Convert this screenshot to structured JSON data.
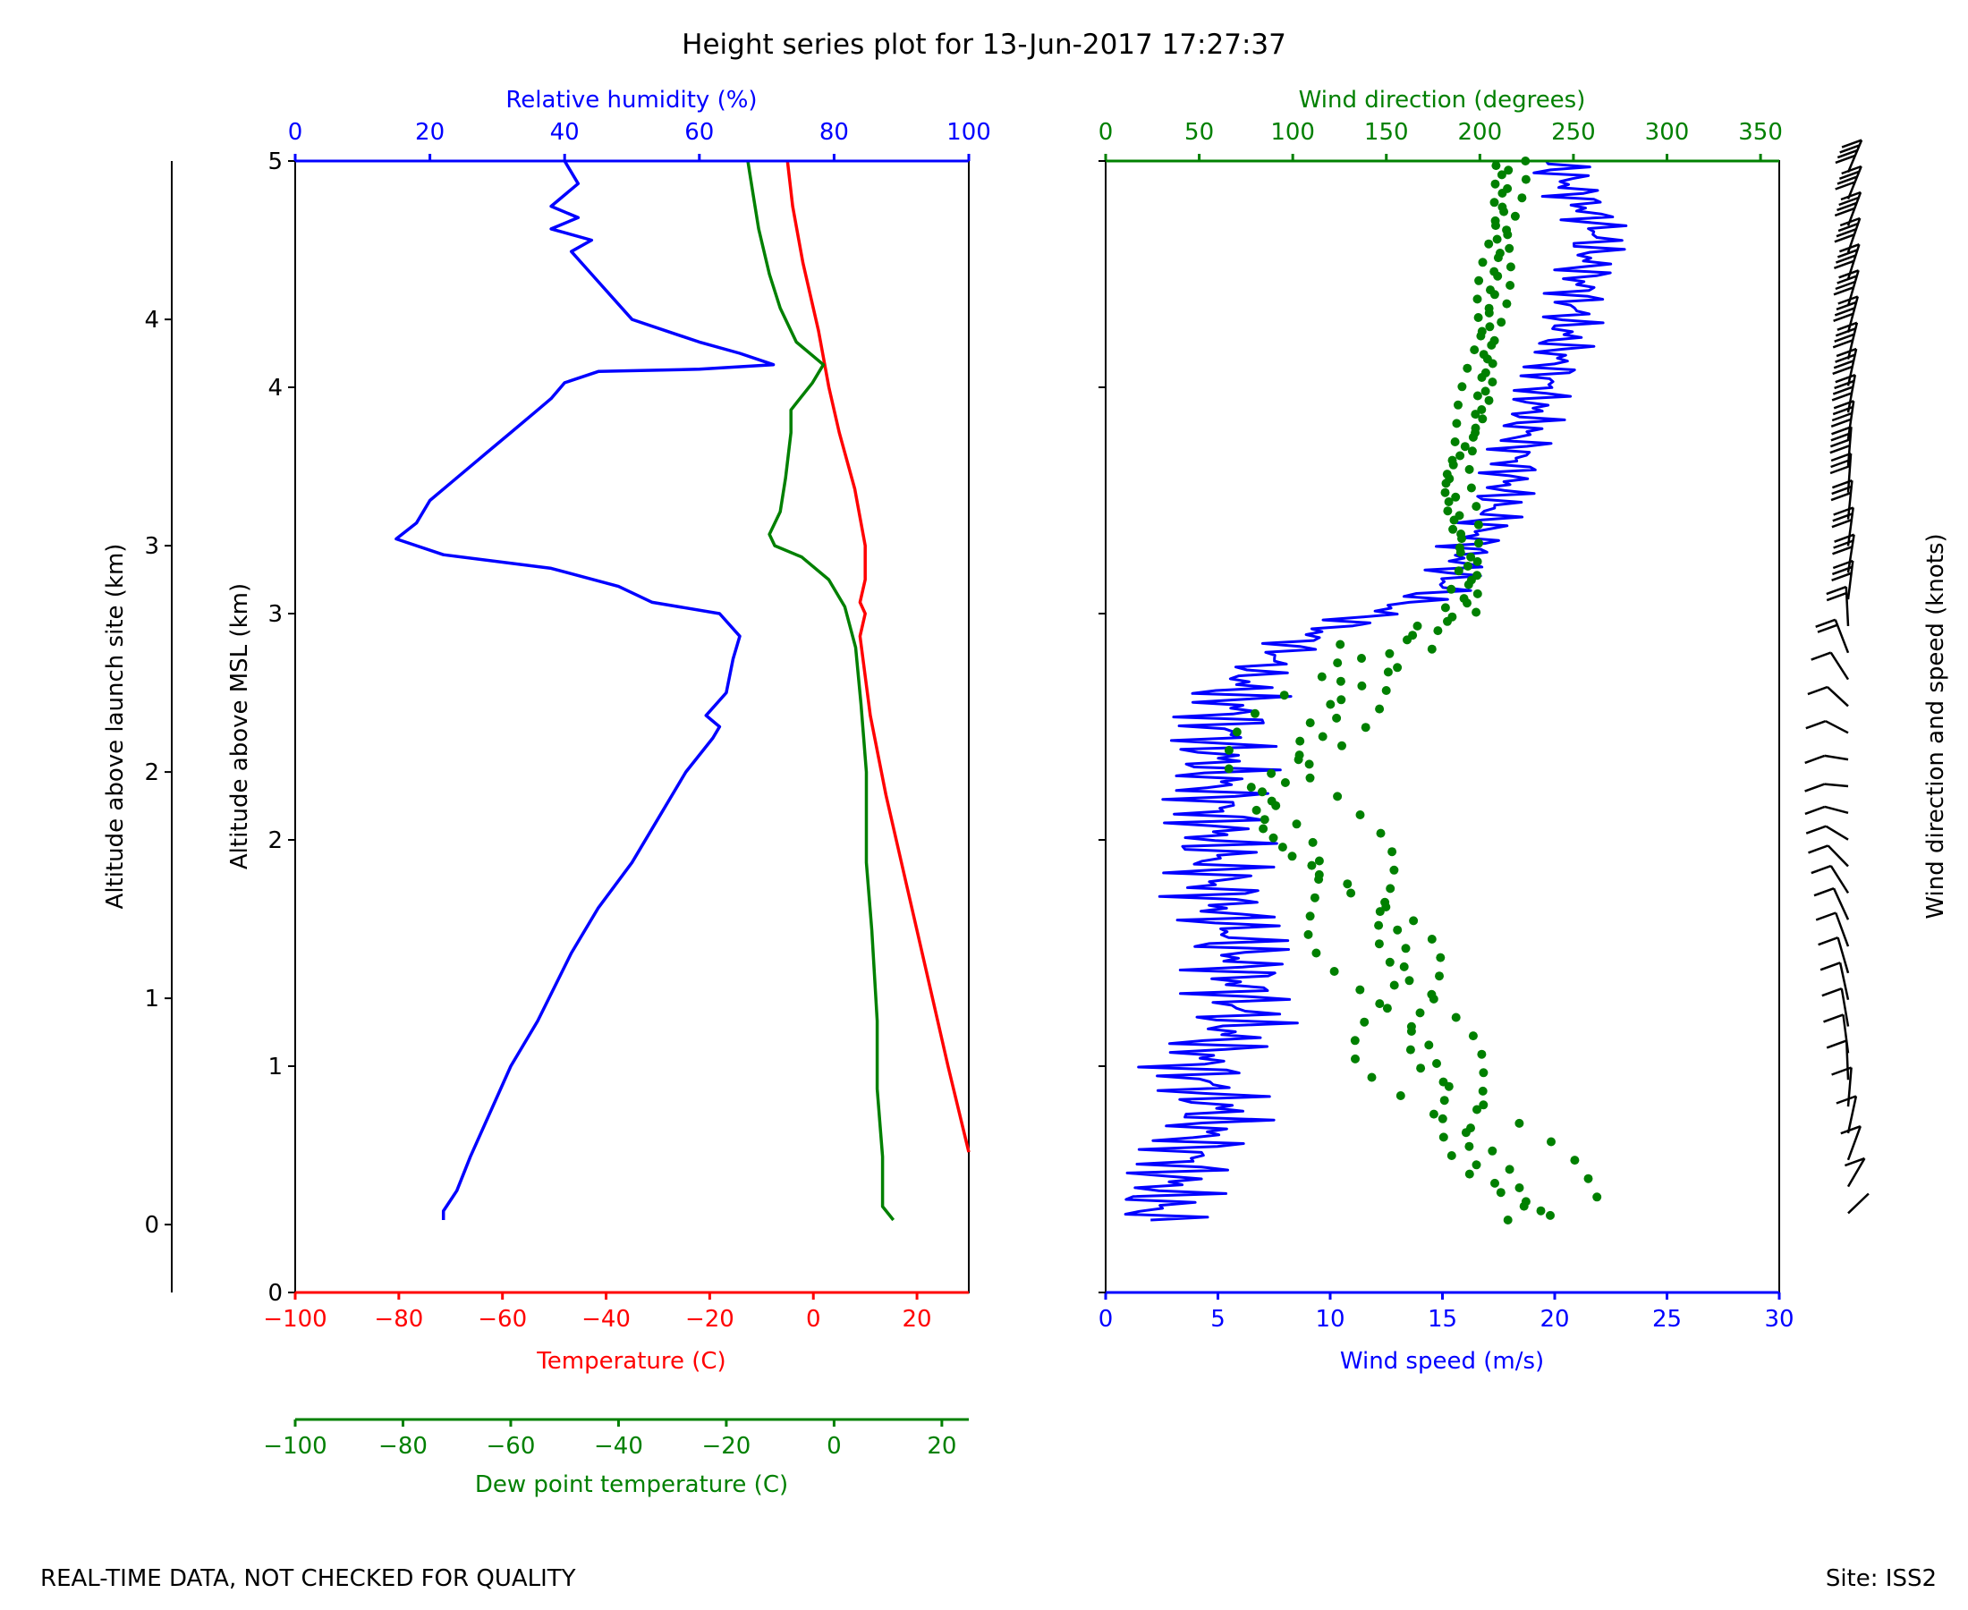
{
  "title": "Height series plot for 13-Jun-2017 17:27:37",
  "footer": {
    "left": "REAL-TIME DATA, NOT CHECKED FOR QUALITY",
    "right": "Site: ISS2"
  },
  "colors": {
    "temperature": "#ff0000",
    "dewpoint": "#008000",
    "humidity": "#0000ff",
    "wind_speed": "#0000ff",
    "wind_dir": "#008000",
    "barbs": "#000000",
    "axis": "#000000"
  },
  "chart_data": [
    {
      "type": "line",
      "name": "thermo-panel",
      "yaxis_left_outer": {
        "label": "Altitude above launch site (km)",
        "range": [
          -0.3,
          4.7
        ],
        "ticks": [
          0,
          1,
          2,
          3,
          4
        ]
      },
      "yaxis_left": {
        "label": "Altitude above MSL (km)",
        "range": [
          0,
          5
        ],
        "ticks": [
          0,
          1,
          2,
          3,
          4,
          5
        ]
      },
      "xaxis_top": {
        "label": "Relative humidity (%)",
        "range": [
          0,
          100
        ],
        "ticks": [
          0,
          20,
          40,
          60,
          80,
          100
        ]
      },
      "xaxis_bottom": {
        "label": "Temperature (C)",
        "range": [
          -100,
          30
        ],
        "ticks": [
          -100,
          -80,
          -60,
          -40,
          -20,
          0,
          20
        ]
      },
      "xaxis_bottom2": {
        "label": "Dew point temperature (C)",
        "range": [
          -100,
          25
        ],
        "ticks": [
          -100,
          -80,
          -60,
          -40,
          -20,
          0,
          20
        ]
      },
      "series": [
        {
          "name": "Temperature",
          "axis": "temperature",
          "color": "#ff0000",
          "points": [
            [
              30,
              0.62
            ],
            [
              26,
              1.0
            ],
            [
              22,
              1.4
            ],
            [
              18,
              1.8
            ],
            [
              14,
              2.2
            ],
            [
              11,
              2.55
            ],
            [
              9,
              2.9
            ],
            [
              10,
              3.0
            ],
            [
              9,
              3.05
            ],
            [
              10,
              3.15
            ],
            [
              10,
              3.3
            ],
            [
              8,
              3.55
            ],
            [
              5,
              3.8
            ],
            [
              3,
              4.0
            ],
            [
              1,
              4.25
            ],
            [
              -2,
              4.55
            ],
            [
              -4,
              4.8
            ],
            [
              -5,
              5.0
            ]
          ]
        },
        {
          "name": "Dew point temperature",
          "axis": "dewpoint",
          "color": "#008000",
          "points": [
            [
              11,
              0.32
            ],
            [
              9,
              0.38
            ],
            [
              9,
              0.6
            ],
            [
              8,
              0.9
            ],
            [
              8,
              1.2
            ],
            [
              7,
              1.6
            ],
            [
              6,
              1.9
            ],
            [
              6,
              2.3
            ],
            [
              5,
              2.6
            ],
            [
              4,
              2.85
            ],
            [
              2,
              3.03
            ],
            [
              -1,
              3.15
            ],
            [
              -6,
              3.25
            ],
            [
              -11,
              3.3
            ],
            [
              -12,
              3.35
            ],
            [
              -10,
              3.45
            ],
            [
              -9,
              3.6
            ],
            [
              -8,
              3.8
            ],
            [
              -8,
              3.9
            ],
            [
              -4,
              4.02
            ],
            [
              -2,
              4.1
            ],
            [
              -7,
              4.2
            ],
            [
              -10,
              4.35
            ],
            [
              -12,
              4.5
            ],
            [
              -14,
              4.7
            ],
            [
              -15,
              4.85
            ],
            [
              -16,
              5.0
            ]
          ]
        },
        {
          "name": "Relative humidity",
          "axis": "humidity",
          "color": "#0000ff",
          "points": [
            [
              22,
              0.32
            ],
            [
              22,
              0.36
            ],
            [
              24,
              0.45
            ],
            [
              26,
              0.6
            ],
            [
              29,
              0.8
            ],
            [
              32,
              1.0
            ],
            [
              36,
              1.2
            ],
            [
              41,
              1.5
            ],
            [
              45,
              1.7
            ],
            [
              50,
              1.9
            ],
            [
              54,
              2.1
            ],
            [
              58,
              2.3
            ],
            [
              62,
              2.45
            ],
            [
              63,
              2.5
            ],
            [
              61,
              2.55
            ],
            [
              64,
              2.65
            ],
            [
              65,
              2.8
            ],
            [
              66,
              2.9
            ],
            [
              63,
              3.0
            ],
            [
              53,
              3.05
            ],
            [
              48,
              3.12
            ],
            [
              38,
              3.2
            ],
            [
              22,
              3.26
            ],
            [
              15,
              3.33
            ],
            [
              18,
              3.4
            ],
            [
              20,
              3.5
            ],
            [
              24,
              3.6
            ],
            [
              28,
              3.7
            ],
            [
              32,
              3.8
            ],
            [
              36,
              3.9
            ],
            [
              38,
              3.95
            ],
            [
              40,
              4.02
            ],
            [
              45,
              4.07
            ],
            [
              60,
              4.08
            ],
            [
              71,
              4.1
            ],
            [
              66,
              4.15
            ],
            [
              60,
              4.2
            ],
            [
              55,
              4.25
            ],
            [
              50,
              4.3
            ],
            [
              47,
              4.4
            ],
            [
              44,
              4.5
            ],
            [
              41,
              4.6
            ],
            [
              44,
              4.65
            ],
            [
              38,
              4.7
            ],
            [
              42,
              4.75
            ],
            [
              38,
              4.8
            ],
            [
              42,
              4.9
            ],
            [
              40,
              5.0
            ]
          ]
        }
      ]
    },
    {
      "type": "line",
      "name": "wind-panel",
      "xaxis_bottom": {
        "label": "Wind speed (m/s)",
        "range": [
          0,
          30
        ],
        "ticks": [
          0,
          5,
          10,
          15,
          20,
          25,
          30
        ]
      },
      "xaxis_top": {
        "label": "Wind direction (degrees)",
        "range": [
          0,
          360
        ],
        "ticks": [
          0,
          50,
          100,
          150,
          200,
          250,
          300,
          350
        ]
      },
      "yaxis_right_label": "Wind direction and speed (knots)",
      "series": [
        {
          "name": "Wind speed",
          "color": "#0000ff",
          "points": [
            [
              2,
              0.32
            ],
            [
              3,
              0.5
            ],
            [
              5,
              0.8
            ],
            [
              4,
              1.0
            ],
            [
              6,
              1.2
            ],
            [
              6,
              1.5
            ],
            [
              5,
              1.8
            ],
            [
              5,
              2.1
            ],
            [
              5,
              2.4
            ],
            [
              6,
              2.7
            ],
            [
              9,
              2.9
            ],
            [
              12,
              3.0
            ],
            [
              15,
              3.1
            ],
            [
              17,
              3.4
            ],
            [
              18,
              3.6
            ],
            [
              19,
              3.9
            ],
            [
              20,
              4.1
            ],
            [
              21,
              4.4
            ],
            [
              22,
              4.7
            ],
            [
              20,
              5.0
            ]
          ]
        },
        {
          "name": "Wind direction",
          "type": "scatter",
          "color": "#008000",
          "points": [
            [
              240,
              0.35
            ],
            [
              220,
              0.5
            ],
            [
              190,
              0.8
            ],
            [
              170,
              1.0
            ],
            [
              160,
              1.3
            ],
            [
              150,
              1.5
            ],
            [
              140,
              1.7
            ],
            [
              120,
              1.9
            ],
            [
              100,
              2.1
            ],
            [
              90,
              2.3
            ],
            [
              120,
              2.6
            ],
            [
              150,
              2.85
            ],
            [
              190,
              3.0
            ],
            [
              195,
              3.2
            ],
            [
              190,
              3.4
            ],
            [
              185,
              3.6
            ],
            [
              195,
              3.8
            ],
            [
              200,
              4.0
            ],
            [
              205,
              4.3
            ],
            [
              210,
              4.6
            ],
            [
              215,
              4.9
            ],
            [
              215,
              5.0
            ]
          ]
        }
      ]
    }
  ]
}
